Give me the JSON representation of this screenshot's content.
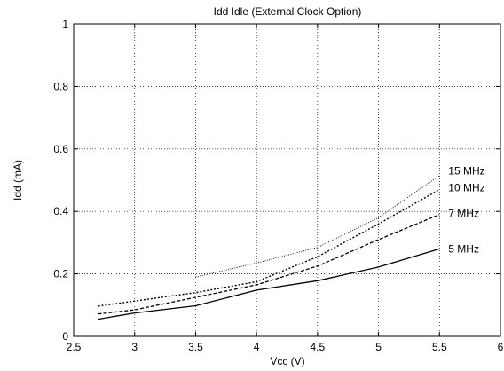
{
  "chart_data": {
    "type": "line",
    "title": "Idd Idle (External Clock Option)",
    "xlabel": "Vcc (V)",
    "ylabel": "Idd (mA)",
    "xlim": [
      2.5,
      6
    ],
    "ylim": [
      0,
      1
    ],
    "xticks": [
      2.5,
      3,
      3.5,
      4,
      4.5,
      5,
      5.5,
      6
    ],
    "yticks": [
      0,
      0.2,
      0.4,
      0.6,
      0.8,
      1
    ],
    "xtick_labels": [
      "2.5",
      "3",
      "3.5",
      "4",
      "4.5",
      "5",
      "5.5",
      "6"
    ],
    "ytick_labels": [
      "0",
      "0.2",
      "0.4",
      "0.6",
      "0.8",
      "1"
    ],
    "grid": true,
    "legend": "inline labels at line ends",
    "series": [
      {
        "name": "15 MHz",
        "style": "dotted-fine",
        "x": [
          3.5,
          4,
          4.5,
          5,
          5.5
        ],
        "y": [
          0.19,
          0.235,
          0.285,
          0.38,
          0.515
        ]
      },
      {
        "name": "10 MHz",
        "style": "dotted",
        "x": [
          2.7,
          3,
          3.5,
          4,
          4.5,
          5,
          5.5
        ],
        "y": [
          0.097,
          0.113,
          0.14,
          0.175,
          0.255,
          0.36,
          0.47
        ]
      },
      {
        "name": "7 MHz",
        "style": "dashed",
        "x": [
          2.7,
          3,
          3.5,
          4,
          4.5,
          5,
          5.5
        ],
        "y": [
          0.072,
          0.085,
          0.125,
          0.165,
          0.225,
          0.31,
          0.39
        ]
      },
      {
        "name": "5 MHz",
        "style": "solid",
        "x": [
          2.7,
          3,
          3.5,
          4,
          4.5,
          5,
          5.5
        ],
        "y": [
          0.055,
          0.075,
          0.098,
          0.148,
          0.178,
          0.222,
          0.28
        ]
      }
    ]
  }
}
